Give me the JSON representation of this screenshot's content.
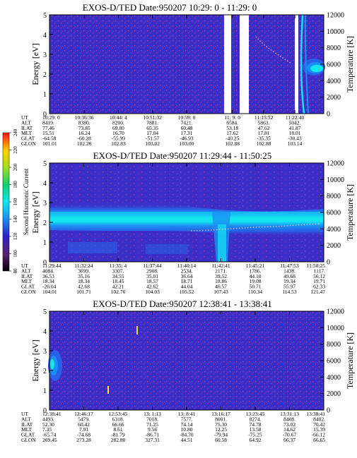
{
  "colors": {
    "background_field": "#3a2fc8",
    "speckle": "#c8388a",
    "band_cyan": "#14e6f0",
    "band_blue": "#1a90f2",
    "band_mid": "#2860e6",
    "gap": "#ffffff",
    "trace_dots": "#ffb0e0"
  },
  "colorbar": {
    "label": "Second Harmonic Current",
    "ticks": [
      "240",
      "220",
      "200",
      "180",
      "160",
      "140",
      "120",
      "100",
      "80"
    ]
  },
  "row_labels": [
    "UT",
    "ALT",
    "ILAT",
    "MLT",
    "GLAT",
    "GLON"
  ],
  "chart_data": [
    {
      "type": "heatmap",
      "title": "EXOS-D/TED   Date:950207  10:29: 0 - 11:29: 0",
      "ylabel": "Energy [eV]",
      "ylabel_right": "Temperature [K]",
      "ylim": [
        0,
        5
      ],
      "yticks": [
        "0",
        "1",
        "2",
        "3",
        "4",
        "5"
      ],
      "ylim_right": [
        0,
        12000
      ],
      "yticks_right": [
        "0",
        "2000",
        "4000",
        "6000",
        "8000",
        "10000",
        "12000"
      ],
      "gaps_ut": [
        [
          "11:01:50",
          "11:04:30"
        ],
        [
          "11:08:10",
          "11:13:20"
        ],
        [
          "11:23:30",
          "11:24:40"
        ]
      ],
      "table": [
        [
          "10:29: 0",
          "8419.",
          "77.46",
          "15.51",
          "-64.58",
          "101.01"
        ],
        [
          "10:36:36",
          "8380.",
          "73.85",
          "16.24",
          "-60.28",
          "102.26"
        ],
        [
          "10:44: 4",
          "8200.",
          "69.80",
          "16.70",
          "-55.99",
          "102.83"
        ],
        [
          "10:51:32",
          "7881.",
          "65.35",
          "17.04",
          "-51.57",
          "103.02"
        ],
        [
          "10:59: 0",
          "7421.",
          "60.48",
          "17.31",
          "-46.93",
          "103.00"
        ],
        [
          "11: 9: 0",
          "6584.",
          "53.18",
          "17.62",
          "-40.25",
          "102.88"
        ],
        [
          "11:15:52",
          "5863.",
          "47.62",
          "17.81",
          "-35.35",
          "102.88"
        ],
        [
          "11:22:40",
          "5042.",
          "41.87",
          "18.01",
          "-30.43",
          "103.14"
        ]
      ]
    },
    {
      "type": "heatmap",
      "title": "EXOS-D/TED   Date:950207  11:29:44 - 11:50:25",
      "ylabel": "Energy [eV]",
      "ylabel_right": "Temperature [K]",
      "ylim": [
        0,
        5
      ],
      "yticks": [
        "0",
        "1",
        "2",
        "3",
        "4",
        "5"
      ],
      "ylim_right": [
        0,
        12000
      ],
      "yticks_right": [
        "0",
        "2000",
        "4000",
        "6000",
        "8000",
        "10000",
        "12000"
      ],
      "band_energy_center_ev": 2.1,
      "table": [
        [
          "11:29:44",
          "4084.",
          "36.53",
          "18.34",
          "-26.04",
          "104.01"
        ],
        [
          "11:32:24",
          "3699.",
          "35.16",
          "18.34",
          "42.68",
          "101.71"
        ],
        [
          "11:35: 4",
          "3307.",
          "34.55",
          "18.45",
          "42.21",
          "102.76"
        ],
        [
          "11:37:44",
          "2908.",
          "35.01",
          "18.57",
          "42.62",
          "104.03"
        ],
        [
          "11:40:14",
          "2534.",
          "36.64",
          "18.71",
          "44.04",
          "105.52"
        ],
        [
          "11:42:41",
          "2171.",
          "39.52",
          "18.86",
          "46.57",
          "107.43"
        ],
        [
          "11:45:21",
          "1786.",
          "44.10",
          "19.08",
          "50.71",
          "110.34"
        ],
        [
          "11:47:53",
          "1438.",
          "49.68",
          "19.34",
          "55.97",
          "114.53"
        ],
        [
          "11:50:25",
          "1117.",
          "56.12",
          "19.71",
          "62.33",
          "121.47"
        ]
      ]
    },
    {
      "type": "heatmap",
      "title": "EXOS-D/TED   Date:950207  12:38:41 - 13:38:41",
      "ylabel": "Energy [eV]",
      "ylabel_right": "Temperature [K]",
      "ylim": [
        0,
        5
      ],
      "yticks": [
        "0",
        "1",
        "2",
        "3",
        "4",
        "5"
      ],
      "ylim_right": [
        0,
        12000
      ],
      "yticks_right": [
        "0",
        "2000",
        "4000",
        "6000",
        "8000",
        "10000",
        "12000"
      ],
      "table": [
        [
          "12:38:41",
          "4493.",
          "52.30",
          "7.35",
          "-65.74",
          "269.45"
        ],
        [
          "12:46:17",
          "5479.",
          "60.42",
          "7.91",
          "-74.68",
          "273.28"
        ],
        [
          "12:53:45",
          "6318.",
          "66.66",
          "8.61",
          "-81.79",
          "282.80"
        ],
        [
          "13: 1:13",
          "7018.",
          "71.25",
          "9.56",
          "-86.71",
          "327.31"
        ],
        [
          "13: 8:41",
          "7577.",
          "74.14",
          "10.80",
          "-84.70",
          "44.51"
        ],
        [
          "13:16:17",
          "8001.",
          "75.30",
          "12.25",
          "-79.94",
          "60.58"
        ],
        [
          "13:23:45",
          "8274.",
          "74.78",
          "13.58",
          "-75.25",
          "64.92"
        ],
        [
          "13:31:13",
          "8408.",
          "73.02",
          "14.62",
          "-70.67",
          "66.37"
        ],
        [
          "13:38:41",
          "8402.",
          "70.42",
          "15.39",
          "-66.12",
          "66.65"
        ]
      ]
    }
  ]
}
